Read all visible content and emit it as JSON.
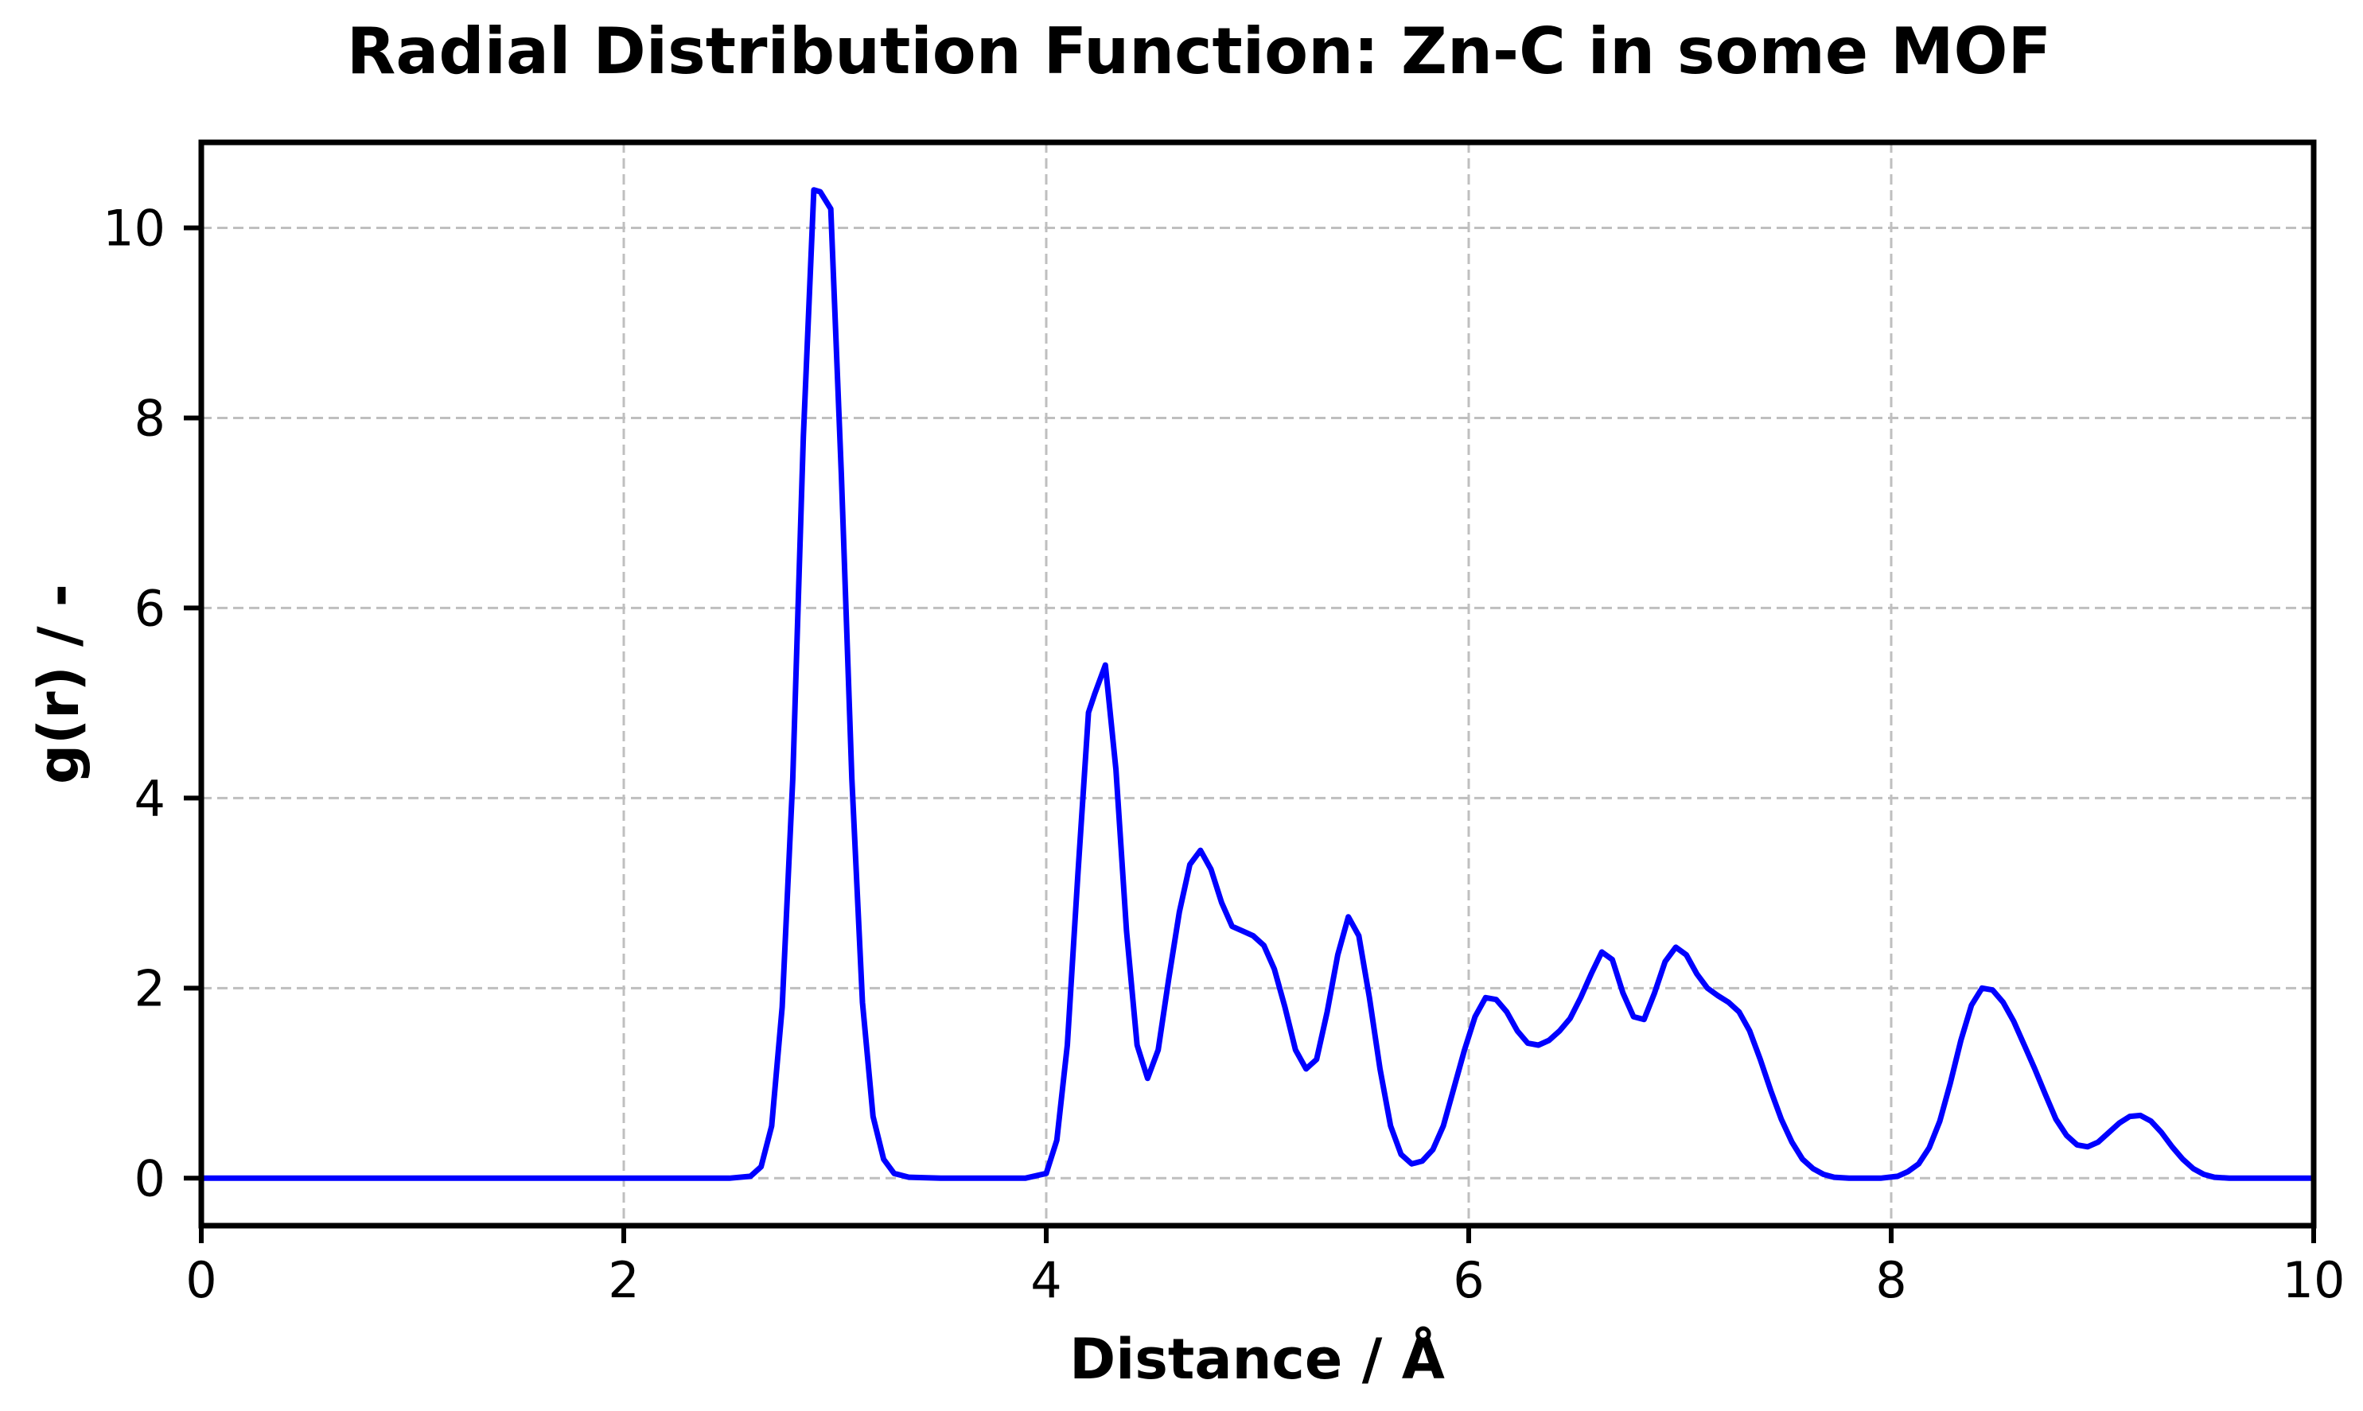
{
  "chart_data": {
    "type": "line",
    "title": "Radial Distribution Function: Zn-C in some MOF",
    "xlabel": "Distance / Å",
    "ylabel": "g(r) / -",
    "xlim": [
      0,
      10
    ],
    "ylim": [
      -0.5,
      10.9
    ],
    "x_ticks": [
      0,
      2,
      4,
      6,
      8,
      10
    ],
    "y_ticks": [
      0,
      2,
      4,
      6,
      8,
      10
    ],
    "grid": true,
    "legend": "none",
    "colors": {
      "line": "#0000ff",
      "grid": "#bfbfbf",
      "axes": "#000000"
    },
    "series": [
      {
        "x": [
          0,
          2.5,
          2.6,
          2.65,
          2.7,
          2.75,
          2.8,
          2.85,
          2.9,
          2.93,
          2.98,
          3.03,
          3.08,
          3.13,
          3.18,
          3.23,
          3.28,
          3.35,
          3.5,
          3.9,
          4.0,
          4.05,
          4.1,
          4.15,
          4.2,
          4.23,
          4.28,
          4.33,
          4.38,
          4.43,
          4.48,
          4.53,
          4.58,
          4.63,
          4.68,
          4.73,
          4.78,
          4.83,
          4.88,
          4.93,
          4.98,
          5.03,
          5.08,
          5.13,
          5.18,
          5.23,
          5.28,
          5.33,
          5.38,
          5.43,
          5.48,
          5.53,
          5.58,
          5.63,
          5.68,
          5.73,
          5.78,
          5.83,
          5.88,
          5.93,
          5.98,
          6.03,
          6.08,
          6.13,
          6.18,
          6.23,
          6.28,
          6.33,
          6.38,
          6.43,
          6.48,
          6.53,
          6.58,
          6.63,
          6.68,
          6.73,
          6.78,
          6.83,
          6.88,
          6.93,
          6.98,
          7.03,
          7.08,
          7.13,
          7.18,
          7.23,
          7.28,
          7.33,
          7.38,
          7.43,
          7.48,
          7.53,
          7.58,
          7.63,
          7.68,
          7.73,
          7.8,
          7.95,
          8.03,
          8.08,
          8.13,
          8.18,
          8.23,
          8.28,
          8.33,
          8.38,
          8.43,
          8.48,
          8.53,
          8.58,
          8.63,
          8.68,
          8.73,
          8.78,
          8.83,
          8.88,
          8.93,
          8.98,
          9.03,
          9.08,
          9.13,
          9.18,
          9.23,
          9.28,
          9.33,
          9.38,
          9.43,
          9.48,
          9.53,
          9.6,
          9.8,
          10.0
        ],
        "y": [
          0,
          0,
          0.02,
          0.12,
          0.55,
          1.8,
          4.2,
          7.8,
          10.4,
          10.38,
          10.2,
          7.4,
          4.2,
          1.85,
          0.65,
          0.2,
          0.05,
          0.01,
          0,
          0,
          0.05,
          0.4,
          1.4,
          3.2,
          4.9,
          5.1,
          5.4,
          4.3,
          2.6,
          1.4,
          1.05,
          1.35,
          2.1,
          2.8,
          3.3,
          3.45,
          3.25,
          2.9,
          2.65,
          2.6,
          2.55,
          2.45,
          2.2,
          1.8,
          1.35,
          1.15,
          1.25,
          1.75,
          2.35,
          2.75,
          2.55,
          1.9,
          1.15,
          0.55,
          0.25,
          0.15,
          0.18,
          0.3,
          0.55,
          0.95,
          1.35,
          1.7,
          1.9,
          1.88,
          1.75,
          1.55,
          1.42,
          1.4,
          1.45,
          1.55,
          1.68,
          1.9,
          2.15,
          2.38,
          2.3,
          1.95,
          1.7,
          1.67,
          1.95,
          2.28,
          2.43,
          2.35,
          2.15,
          2.0,
          1.92,
          1.85,
          1.75,
          1.55,
          1.25,
          0.92,
          0.62,
          0.38,
          0.2,
          0.1,
          0.04,
          0.01,
          0,
          0,
          0.02,
          0.07,
          0.15,
          0.32,
          0.6,
          1.0,
          1.45,
          1.82,
          2.0,
          1.98,
          1.85,
          1.65,
          1.4,
          1.15,
          0.88,
          0.62,
          0.45,
          0.35,
          0.33,
          0.38,
          0.48,
          0.58,
          0.65,
          0.66,
          0.6,
          0.48,
          0.33,
          0.2,
          0.1,
          0.04,
          0.01,
          0,
          0,
          0
        ]
      }
    ]
  }
}
